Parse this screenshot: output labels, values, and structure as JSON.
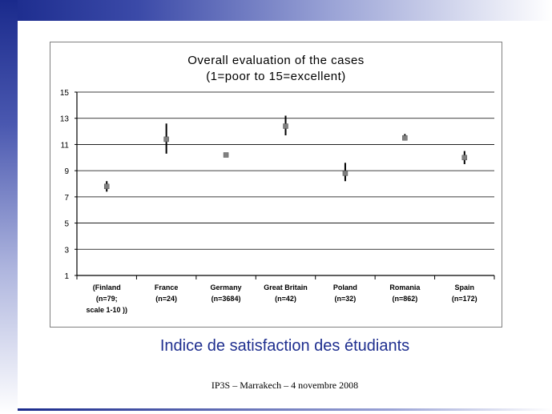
{
  "slide": {
    "subtitle": "Indice de satisfaction des étudiants",
    "footer": "IP3S – Marrakech – 4 novembre 2008"
  },
  "colors": {
    "accent": "#1f2f8f",
    "marker": "#808080",
    "error_bar": "#000000",
    "grid": "#000000"
  },
  "chart_data": {
    "type": "scatter",
    "title_line1": "Overall evaluation of the cases",
    "title_line2": "(1=poor to 15=excellent)",
    "ylim": [
      1,
      15
    ],
    "yticks": [
      1,
      3,
      5,
      7,
      9,
      11,
      13,
      15
    ],
    "grid": true,
    "categories": [
      [
        "(Finland",
        "(n=79;",
        "scale 1-10 ))"
      ],
      [
        "France",
        "(n=24)"
      ],
      [
        "Germany",
        "(n=3684)"
      ],
      [
        "Great Britain",
        "(n=42)"
      ],
      [
        "Poland",
        "(n=32)"
      ],
      [
        "Romania",
        "(n=862)"
      ],
      [
        "Spain",
        "(n=172)"
      ]
    ],
    "values": [
      7.8,
      11.4,
      10.2,
      12.4,
      8.8,
      11.5,
      10.0
    ],
    "error_low": [
      7.4,
      10.3,
      10.2,
      11.7,
      8.2,
      11.3,
      9.5
    ],
    "error_high": [
      8.2,
      12.6,
      10.2,
      13.2,
      9.6,
      11.8,
      10.5
    ]
  }
}
